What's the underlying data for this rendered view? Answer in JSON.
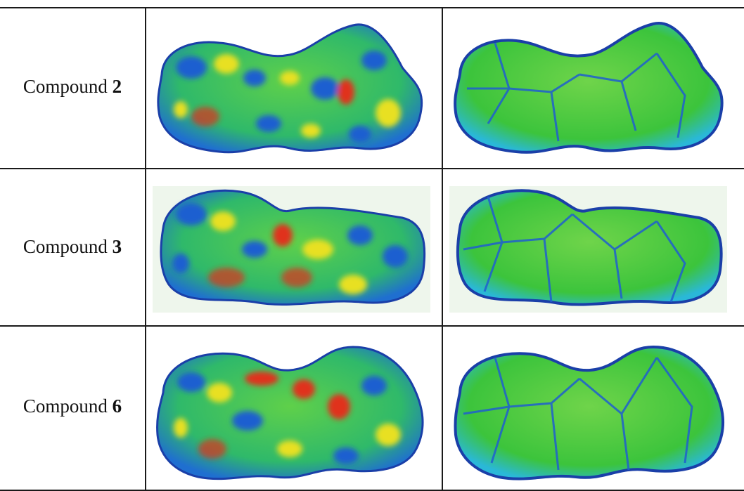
{
  "table": {
    "rows": [
      {
        "label": "Compound ",
        "number": "2",
        "left_map": "dnorm-surface-red-white-blue",
        "right_map": "curvedness-surface-green-blue"
      },
      {
        "label": "Compound ",
        "number": "3",
        "left_map": "dnorm-surface-red-white-blue",
        "right_map": "curvedness-surface-green-blue"
      },
      {
        "label": "Compound ",
        "number": "6",
        "left_map": "dnorm-surface-red-white-blue",
        "right_map": "curvedness-surface-green-blue"
      }
    ]
  },
  "colors": {
    "blue": "#1f5fd0",
    "cyan": "#2ab8d8",
    "green": "#3cc43c",
    "yellow": "#e8e020",
    "red": "#e0301c",
    "dark_blue": "#1a3fa8"
  }
}
